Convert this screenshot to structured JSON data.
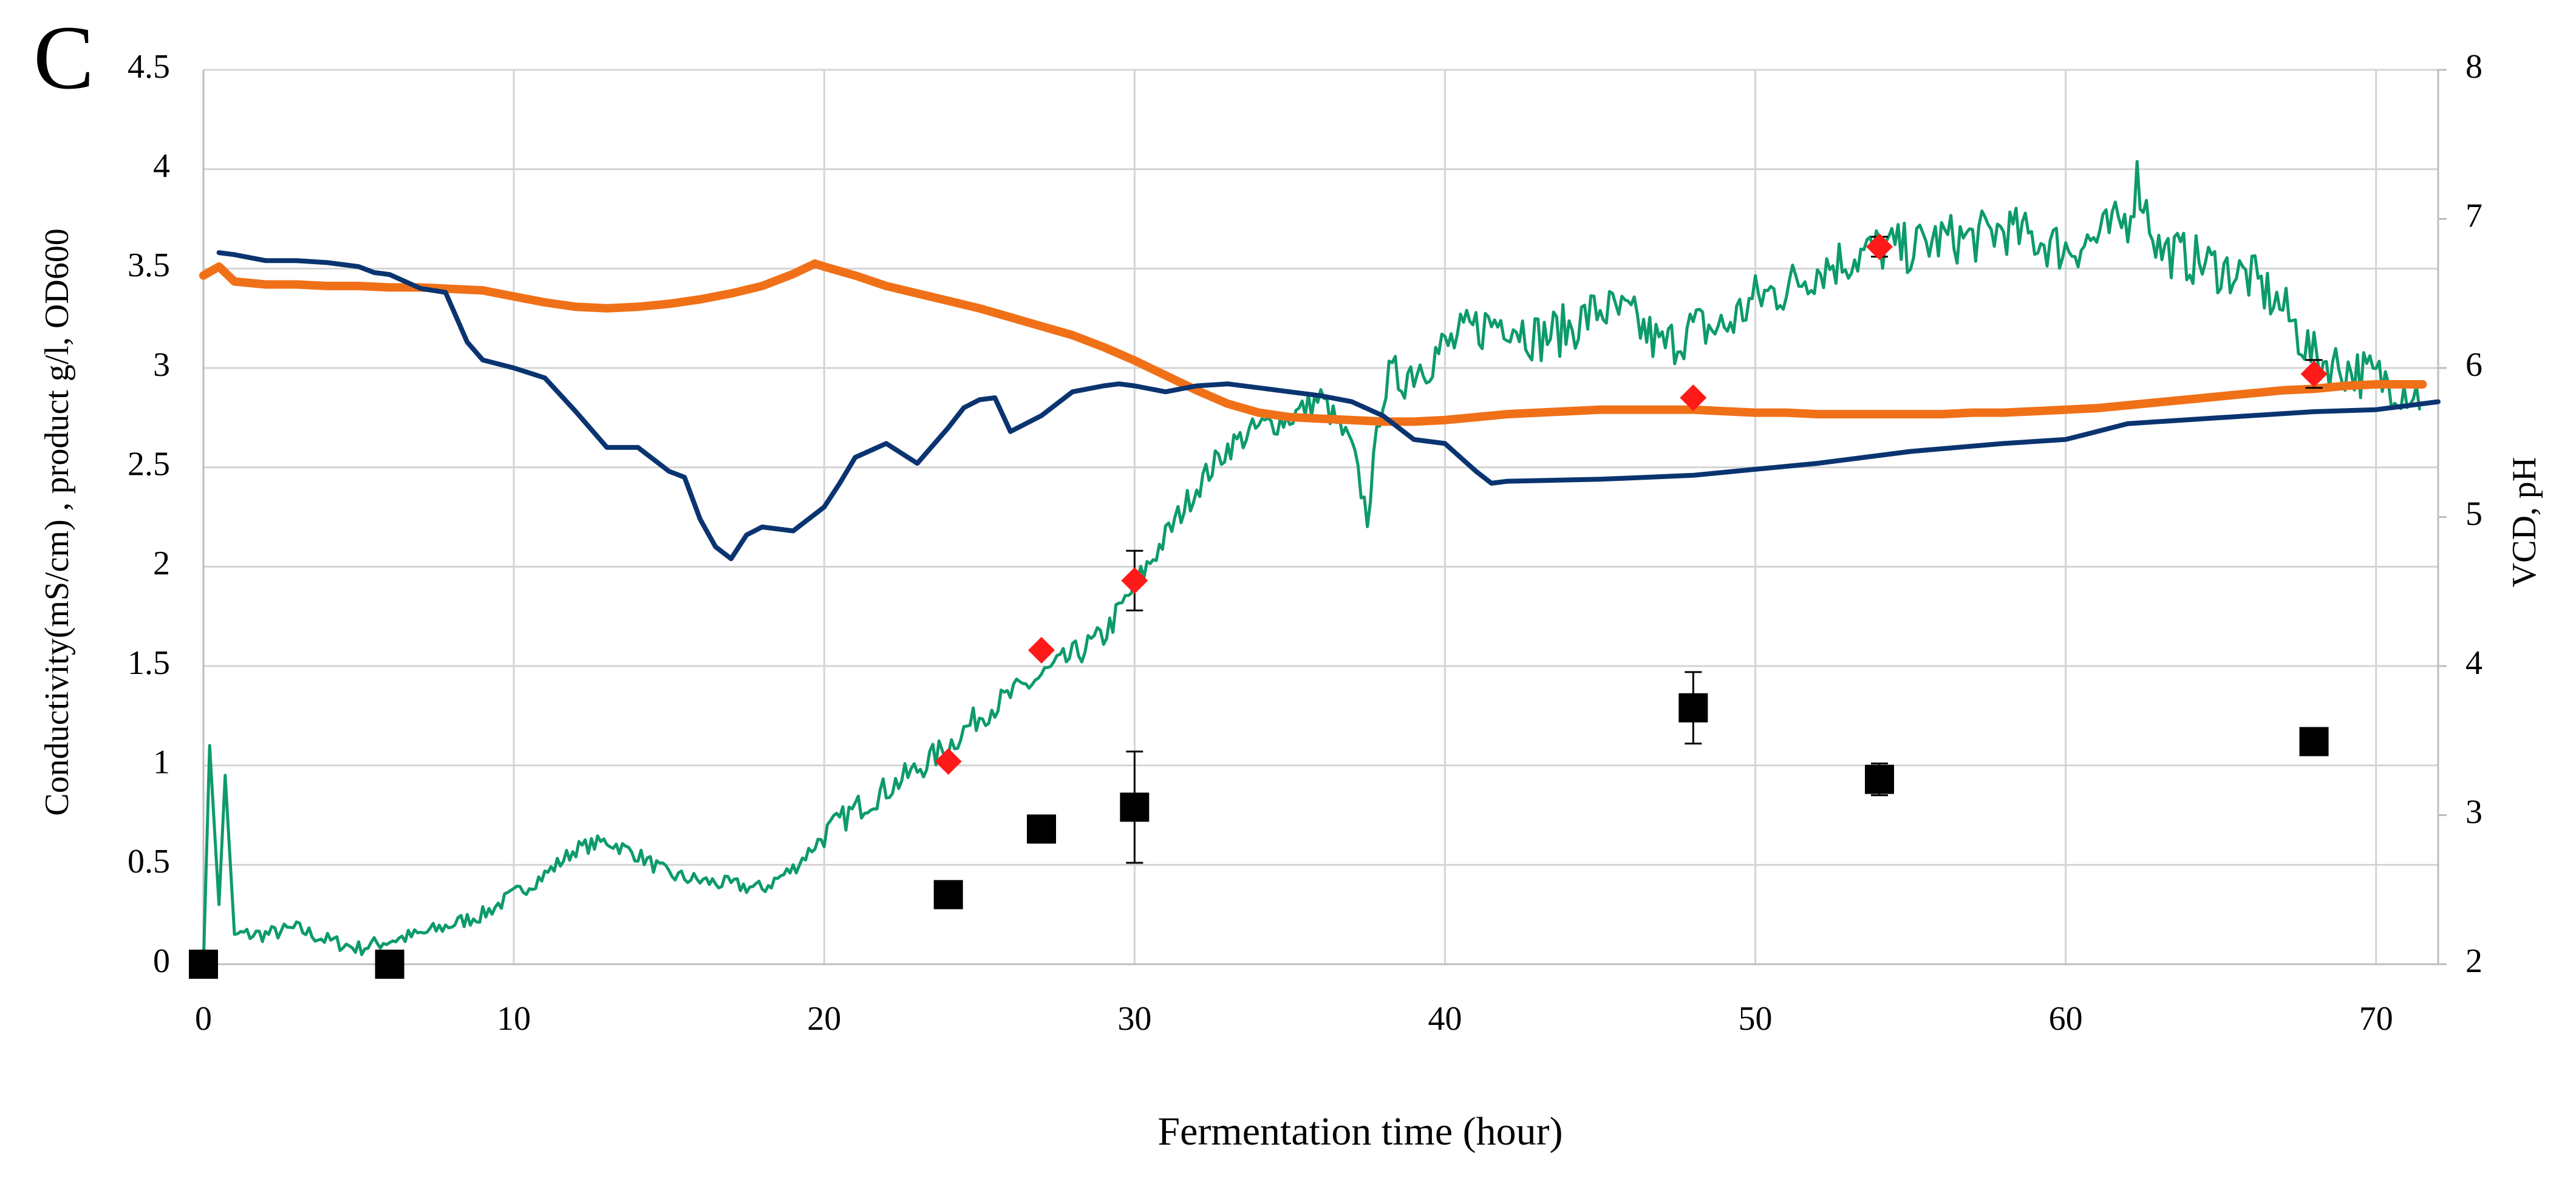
{
  "chart_data": {
    "type": "line",
    "panel_label": "C",
    "xlabel": "Fermentation time (hour)",
    "ylabel_left": "Conductivity(mS/cm) , product g/l, OD600",
    "ylabel_right": "VCD, pH",
    "xlim": [
      0,
      72
    ],
    "ylim_left": [
      0,
      4.5
    ],
    "ylim_right": [
      2,
      8
    ],
    "grid": true,
    "x_ticks": [
      0,
      10,
      20,
      30,
      40,
      50,
      60,
      70
    ],
    "x_tick_labels": [
      "0",
      "10",
      "20",
      "30",
      "40",
      "50",
      "60",
      "70"
    ],
    "y_left_ticks": [
      0,
      0.5,
      1,
      1.5,
      2,
      2.5,
      3,
      3.5,
      4,
      4.5
    ],
    "y_left_tick_labels": [
      "0",
      "0.5",
      "1",
      "1.5",
      "2",
      "2.5",
      "3",
      "3.5",
      "4",
      "4.5"
    ],
    "y_right_ticks": [
      2,
      3,
      4,
      5,
      6,
      7,
      8
    ],
    "y_right_tick_labels": [
      "2",
      "3",
      "4",
      "5",
      "6",
      "7",
      "8"
    ],
    "series": [
      {
        "name": "Conductivity",
        "kind": "line",
        "axis": "left",
        "color": "#0d9b6b",
        "noisy": true,
        "x": [
          0,
          0.2,
          0.5,
          0.7,
          1,
          2,
          3,
          4,
          5,
          6,
          7,
          8,
          9,
          10,
          11,
          12,
          13,
          14,
          15,
          16,
          17,
          18,
          19,
          20,
          21,
          22,
          23,
          24,
          25,
          26,
          27,
          28,
          29,
          30,
          31,
          32,
          33,
          34,
          35,
          36,
          37,
          37.5,
          38,
          39,
          40,
          41,
          42,
          43,
          44,
          45,
          46,
          47,
          48,
          49,
          50,
          51,
          52,
          53,
          54,
          55,
          56,
          57,
          58,
          59,
          60,
          61,
          62,
          62.3,
          63,
          64,
          65,
          66,
          67,
          68,
          69,
          70,
          71,
          71.5
        ],
        "y": [
          0,
          1.1,
          0.3,
          0.95,
          0.15,
          0.15,
          0.18,
          0.12,
          0.08,
          0.12,
          0.15,
          0.2,
          0.25,
          0.35,
          0.45,
          0.58,
          0.62,
          0.55,
          0.45,
          0.42,
          0.4,
          0.38,
          0.48,
          0.65,
          0.78,
          0.88,
          0.98,
          1.1,
          1.25,
          1.35,
          1.45,
          1.55,
          1.65,
          1.9,
          2.15,
          2.4,
          2.6,
          2.7,
          2.75,
          2.85,
          2.6,
          2.25,
          2.9,
          3.0,
          3.1,
          3.2,
          3.25,
          3.15,
          3.2,
          3.3,
          3.25,
          3.1,
          3.2,
          3.2,
          3.35,
          3.4,
          3.5,
          3.55,
          3.6,
          3.6,
          3.65,
          3.65,
          3.7,
          3.65,
          3.6,
          3.65,
          3.75,
          3.95,
          3.6,
          3.55,
          3.5,
          3.45,
          3.3,
          3.05,
          3.0,
          2.95,
          2.9,
          2.85
        ]
      },
      {
        "name": "pH",
        "kind": "line",
        "axis": "right",
        "color": "#f07018",
        "x": [
          0,
          0.5,
          1,
          2,
          3,
          4,
          5,
          6,
          7,
          8,
          9,
          10,
          11,
          12,
          13,
          14,
          15,
          16,
          17,
          18,
          19,
          19.7,
          20,
          21,
          22,
          23,
          24,
          25,
          26,
          27,
          28,
          29,
          30,
          31,
          32,
          33,
          34,
          35,
          36,
          37,
          38,
          39,
          40,
          41,
          42,
          43,
          44,
          45,
          46,
          47,
          48,
          49,
          50,
          51,
          52,
          53,
          54,
          55,
          56,
          57,
          58,
          59,
          60,
          61,
          62,
          63,
          64,
          65,
          66,
          67,
          68,
          69,
          70,
          71,
          71.5
        ],
        "y": [
          6.62,
          6.68,
          6.58,
          6.56,
          6.56,
          6.55,
          6.55,
          6.54,
          6.54,
          6.53,
          6.52,
          6.48,
          6.44,
          6.41,
          6.4,
          6.41,
          6.43,
          6.46,
          6.5,
          6.55,
          6.63,
          6.7,
          6.68,
          6.62,
          6.55,
          6.5,
          6.45,
          6.4,
          6.34,
          6.28,
          6.22,
          6.14,
          6.05,
          5.95,
          5.85,
          5.76,
          5.7,
          5.67,
          5.66,
          5.65,
          5.64,
          5.64,
          5.65,
          5.67,
          5.69,
          5.7,
          5.71,
          5.72,
          5.72,
          5.72,
          5.72,
          5.71,
          5.7,
          5.7,
          5.69,
          5.69,
          5.69,
          5.69,
          5.69,
          5.7,
          5.7,
          5.71,
          5.72,
          5.73,
          5.75,
          5.77,
          5.79,
          5.81,
          5.83,
          5.85,
          5.86,
          5.88,
          5.89,
          5.89,
          5.89
        ]
      },
      {
        "name": "VCD",
        "kind": "line",
        "axis": "left",
        "color": "#0a3470",
        "x": [
          0.5,
          1,
          2,
          3,
          4,
          5,
          5.5,
          6,
          7,
          7.8,
          8.5,
          9,
          10,
          11,
          12,
          13,
          14,
          15,
          15.5,
          16,
          16.5,
          17,
          17.5,
          18,
          19,
          20,
          20.5,
          21,
          22,
          23,
          24,
          24.5,
          25,
          25.5,
          26,
          27,
          28,
          29,
          29.5,
          30,
          31,
          32,
          33,
          34,
          35,
          36,
          37,
          38,
          39,
          40,
          41,
          41.5,
          42,
          45,
          48,
          50,
          52,
          55,
          58,
          60,
          62,
          65,
          68,
          70,
          72
        ],
        "y": [
          3.58,
          3.57,
          3.54,
          3.54,
          3.53,
          3.51,
          3.48,
          3.47,
          3.4,
          3.38,
          3.13,
          3.04,
          3.0,
          2.95,
          2.78,
          2.6,
          2.6,
          2.48,
          2.45,
          2.24,
          2.1,
          2.04,
          2.16,
          2.2,
          2.18,
          2.3,
          2.42,
          2.55,
          2.62,
          2.52,
          2.7,
          2.8,
          2.84,
          2.85,
          2.68,
          2.76,
          2.88,
          2.91,
          2.92,
          2.91,
          2.88,
          2.91,
          2.92,
          2.9,
          2.88,
          2.86,
          2.83,
          2.76,
          2.64,
          2.62,
          2.48,
          2.42,
          2.43,
          2.44,
          2.46,
          2.49,
          2.52,
          2.58,
          2.62,
          2.64,
          2.72,
          2.75,
          2.78,
          2.79,
          2.83
        ]
      },
      {
        "name": "OD600",
        "kind": "markers",
        "marker": "diamond",
        "axis": "left",
        "color": "#ff1a1a",
        "x": [
          24,
          27,
          30,
          48,
          54,
          68
        ],
        "y": [
          1.02,
          1.58,
          1.93,
          2.85,
          3.61,
          2.97
        ],
        "err": [
          0,
          0,
          0.15,
          0,
          0.05,
          0.07
        ]
      },
      {
        "name": "product",
        "kind": "markers",
        "marker": "square",
        "axis": "left",
        "color": "#000000",
        "x": [
          0,
          6,
          24,
          27,
          30,
          48,
          54,
          68
        ],
        "y": [
          0,
          0,
          0.35,
          0.68,
          0.79,
          1.29,
          0.93,
          1.12
        ],
        "err": [
          0,
          0,
          0,
          0,
          0.28,
          0.18,
          0.08,
          0
        ]
      }
    ]
  }
}
